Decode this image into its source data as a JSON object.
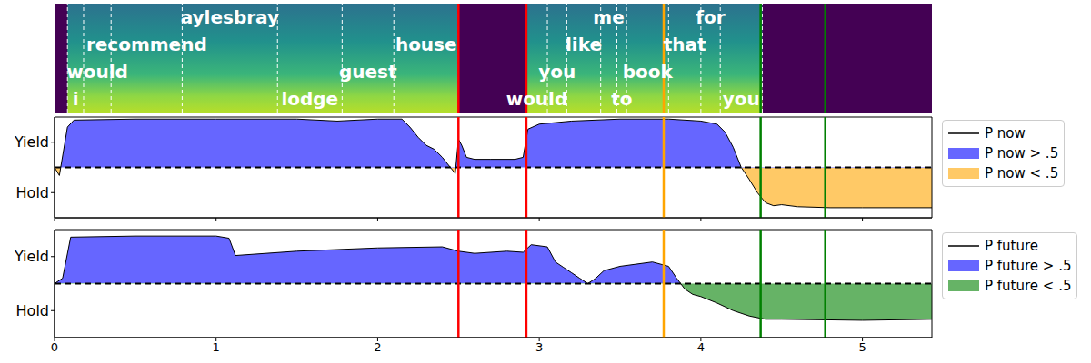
{
  "chart_data": [
    {
      "type": "spectrogram",
      "xlim": [
        0,
        5.43
      ],
      "xticks": [
        0,
        1,
        2,
        3,
        4,
        5
      ],
      "tick_labels": false,
      "utterances": [
        [
          {
            "word": "i",
            "start": 0.08,
            "end": 0.18
          },
          {
            "word": "would",
            "start": 0.18,
            "end": 0.35
          },
          {
            "word": "recommend",
            "start": 0.35,
            "end": 0.79
          },
          {
            "word": "aylesbray",
            "start": 0.79,
            "end": 1.38
          },
          {
            "word": "lodge",
            "start": 1.38,
            "end": 1.78
          },
          {
            "word": "guest",
            "start": 1.78,
            "end": 2.1
          },
          {
            "word": "house",
            "start": 2.1,
            "end": 2.5
          }
        ],
        [
          {
            "word": "would",
            "start": 2.92,
            "end": 3.05
          },
          {
            "word": "you",
            "start": 3.05,
            "end": 3.17
          },
          {
            "word": "like",
            "start": 3.17,
            "end": 3.38
          },
          {
            "word": "me",
            "start": 3.38,
            "end": 3.48
          },
          {
            "word": "to",
            "start": 3.48,
            "end": 3.54
          },
          {
            "word": "book",
            "start": 3.54,
            "end": 3.8
          },
          {
            "word": "that",
            "start": 3.8,
            "end": 4.0
          },
          {
            "word": "for",
            "start": 4.0,
            "end": 4.12
          },
          {
            "word": "you",
            "start": 4.12,
            "end": 4.38
          }
        ]
      ],
      "vertical_lines": [
        {
          "x": 2.5,
          "color": "#ff0000"
        },
        {
          "x": 2.92,
          "color": "#ff0000"
        },
        {
          "x": 3.77,
          "color": "#ffa500"
        },
        {
          "x": 4.37,
          "color": "#008000"
        },
        {
          "x": 4.77,
          "color": "#008000"
        }
      ]
    },
    {
      "type": "area",
      "xlim": [
        0,
        5.43
      ],
      "xticks": [
        0,
        1,
        2,
        3,
        4,
        5
      ],
      "ylim": [
        0,
        1
      ],
      "yticks": [
        {
          "value": 0.75,
          "label": "Yield"
        },
        {
          "value": 0.25,
          "label": "Hold"
        }
      ],
      "tick_labels": "y",
      "threshold": 0.5,
      "x": [
        0,
        0.03,
        0.08,
        0.12,
        0.5,
        1.0,
        1.5,
        1.75,
        2.0,
        2.15,
        2.2,
        2.25,
        2.3,
        2.35,
        2.4,
        2.45,
        2.48,
        2.5,
        2.52,
        2.55,
        2.6,
        2.7,
        2.85,
        2.9,
        2.93,
        3.0,
        3.2,
        3.5,
        3.8,
        4.0,
        4.1,
        4.15,
        4.2,
        4.25,
        4.3,
        4.35,
        4.4,
        4.45,
        4.5,
        4.6,
        4.8,
        5.0,
        5.43
      ],
      "series": [
        {
          "name": "P now",
          "color": "#000000",
          "values": [
            0.5,
            0.42,
            0.9,
            0.97,
            0.98,
            0.98,
            0.98,
            0.96,
            0.98,
            0.98,
            0.9,
            0.8,
            0.72,
            0.68,
            0.6,
            0.5,
            0.44,
            0.78,
            0.72,
            0.6,
            0.58,
            0.58,
            0.58,
            0.6,
            0.88,
            0.93,
            0.96,
            0.98,
            0.98,
            0.96,
            0.93,
            0.85,
            0.7,
            0.5,
            0.38,
            0.25,
            0.15,
            0.12,
            0.13,
            0.11,
            0.1,
            0.1,
            0.1
          ]
        }
      ],
      "fills": [
        {
          "name": "P now > .5",
          "color": "#6666ff"
        },
        {
          "name": "P now < .5",
          "color": "#ffc966"
        }
      ],
      "legend": "upper left",
      "vertical_lines": [
        {
          "x": 2.5,
          "color": "#ff0000"
        },
        {
          "x": 2.92,
          "color": "#ff0000"
        },
        {
          "x": 3.77,
          "color": "#ffa500"
        },
        {
          "x": 4.37,
          "color": "#008000"
        },
        {
          "x": 4.77,
          "color": "#008000"
        }
      ]
    },
    {
      "type": "area",
      "xlim": [
        0,
        5.43
      ],
      "xticks": [
        0,
        1,
        2,
        3,
        4,
        5
      ],
      "ylim": [
        0,
        1
      ],
      "yticks": [
        {
          "value": 0.75,
          "label": "Yield"
        },
        {
          "value": 0.25,
          "label": "Hold"
        }
      ],
      "tick_labels": true,
      "threshold": 0.5,
      "x": [
        0,
        0.05,
        0.1,
        0.5,
        1.0,
        1.08,
        1.12,
        1.5,
        2.0,
        2.4,
        2.5,
        2.6,
        2.8,
        2.9,
        2.95,
        3.05,
        3.1,
        3.15,
        3.2,
        3.25,
        3.3,
        3.35,
        3.4,
        3.5,
        3.6,
        3.7,
        3.8,
        3.85,
        3.9,
        3.95,
        4.0,
        4.1,
        4.2,
        4.3,
        4.4,
        4.5,
        5.0,
        5.43
      ],
      "series": [
        {
          "name": "P future",
          "color": "#000000",
          "values": [
            0.5,
            0.55,
            0.93,
            0.94,
            0.94,
            0.92,
            0.76,
            0.8,
            0.83,
            0.84,
            0.8,
            0.78,
            0.8,
            0.79,
            0.86,
            0.84,
            0.7,
            0.65,
            0.6,
            0.55,
            0.5,
            0.55,
            0.62,
            0.66,
            0.68,
            0.7,
            0.66,
            0.55,
            0.45,
            0.4,
            0.38,
            0.32,
            0.25,
            0.2,
            0.17,
            0.17,
            0.16,
            0.17
          ]
        }
      ],
      "fills": [
        {
          "name": "P future > .5",
          "color": "#6666ff"
        },
        {
          "name": "P future < .5",
          "color": "#66b366"
        }
      ],
      "legend": "upper left",
      "vertical_lines": [
        {
          "x": 2.5,
          "color": "#ff0000"
        },
        {
          "x": 2.92,
          "color": "#ff0000"
        },
        {
          "x": 3.77,
          "color": "#ffa500"
        },
        {
          "x": 4.37,
          "color": "#008000"
        },
        {
          "x": 4.77,
          "color": "#008000"
        }
      ]
    }
  ]
}
